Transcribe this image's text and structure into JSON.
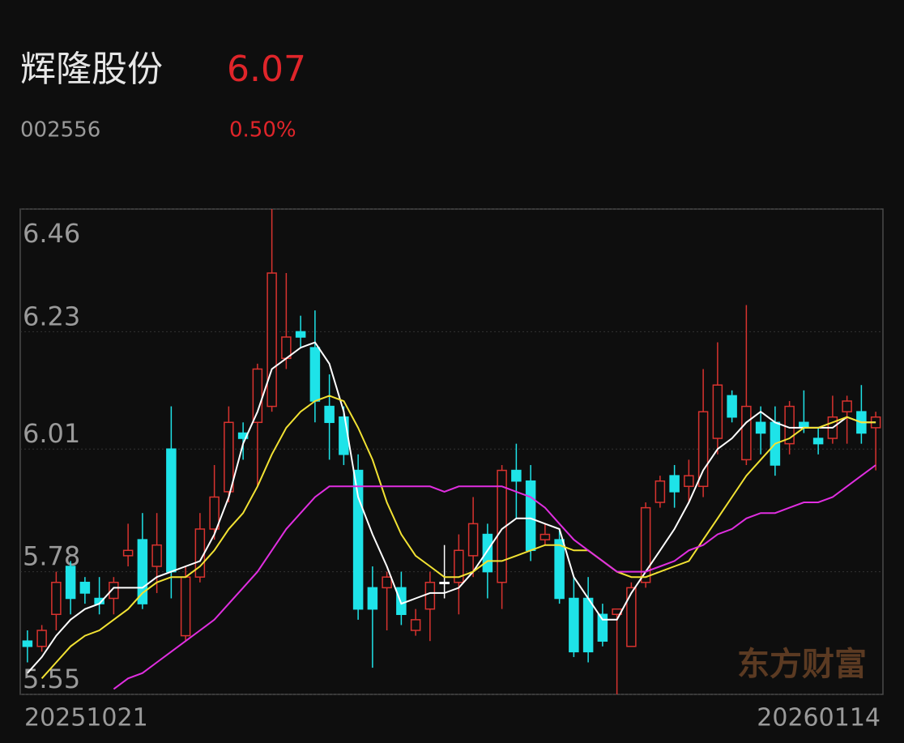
{
  "header": {
    "name": "辉隆股份",
    "price": 6.07,
    "code": "002556",
    "change": "0.50%"
  },
  "chart_data": {
    "type": "candlestick",
    "watermark": "东方财富",
    "categories": [
      "20251021",
      null,
      null,
      null,
      null,
      null,
      null,
      null,
      null,
      null,
      null,
      null,
      null,
      null,
      null,
      null,
      null,
      null,
      null,
      null,
      null,
      null,
      null,
      null,
      null,
      null,
      null,
      null,
      null,
      null,
      null,
      null,
      null,
      null,
      null,
      null,
      null,
      null,
      null,
      null,
      null,
      null,
      null,
      null,
      null,
      null,
      null,
      null,
      null,
      null,
      null,
      null,
      null,
      null,
      null,
      null,
      null,
      null,
      null,
      "20260114"
    ],
    "open": [
      5.65,
      5.64,
      5.7,
      5.79,
      5.76,
      5.73,
      5.73,
      5.81,
      5.84,
      5.79,
      6.01,
      5.66,
      5.77,
      5.86,
      5.93,
      6.04,
      6.06,
      6.09,
      6.18,
      6.23,
      6.2,
      6.09,
      6.07,
      5.97,
      5.75,
      5.75,
      5.75,
      5.67,
      5.71,
      5.76,
      5.76,
      5.81,
      5.85,
      5.76,
      5.97,
      5.95,
      5.84,
      5.84,
      5.73,
      5.73,
      5.7,
      5.7,
      5.64,
      5.76,
      5.91,
      5.96,
      5.94,
      5.94,
      6.03,
      6.11,
      5.99,
      6.06,
      6.06,
      6.02,
      6.06,
      6.03,
      6.03,
      6.08,
      6.08,
      6.05
    ],
    "high": [
      5.67,
      5.68,
      5.78,
      5.8,
      5.77,
      5.77,
      5.77,
      5.87,
      5.89,
      5.89,
      6.09,
      5.79,
      5.89,
      5.98,
      6.09,
      6.06,
      6.17,
      6.46,
      6.34,
      6.26,
      6.27,
      6.15,
      6.09,
      6.0,
      5.79,
      5.78,
      5.78,
      5.71,
      5.78,
      5.83,
      5.85,
      5.92,
      5.87,
      5.98,
      6.02,
      5.98,
      5.87,
      5.86,
      5.77,
      5.77,
      5.72,
      5.71,
      5.76,
      5.91,
      5.96,
      5.98,
      5.99,
      6.16,
      6.21,
      6.12,
      6.28,
      6.09,
      6.09,
      6.1,
      6.12,
      6.05,
      6.11,
      6.11,
      6.13,
      6.08
    ],
    "low": [
      5.61,
      5.63,
      5.67,
      5.7,
      5.72,
      5.7,
      5.7,
      5.79,
      5.71,
      5.74,
      5.73,
      5.65,
      5.76,
      5.84,
      5.91,
      5.99,
      5.94,
      6.08,
      6.16,
      6.2,
      6.06,
      5.99,
      5.98,
      5.69,
      5.6,
      5.67,
      5.68,
      5.66,
      5.65,
      5.73,
      5.7,
      5.77,
      5.73,
      5.71,
      5.88,
      5.8,
      5.83,
      5.72,
      5.62,
      5.61,
      5.64,
      5.55,
      5.64,
      5.75,
      5.9,
      5.9,
      5.91,
      5.92,
      6.0,
      6.06,
      5.98,
      6.0,
      5.96,
      6.0,
      6.04,
      6.0,
      6.02,
      6.02,
      6.02,
      5.97
    ],
    "close": [
      5.64,
      5.67,
      5.76,
      5.73,
      5.74,
      5.72,
      5.76,
      5.82,
      5.72,
      5.83,
      5.78,
      5.77,
      5.86,
      5.92,
      6.06,
      6.03,
      6.16,
      6.34,
      6.22,
      6.22,
      6.1,
      6.06,
      6.0,
      5.71,
      5.71,
      5.77,
      5.7,
      5.69,
      5.76,
      5.76,
      5.82,
      5.87,
      5.78,
      5.97,
      5.95,
      5.82,
      5.85,
      5.73,
      5.63,
      5.63,
      5.65,
      5.71,
      5.75,
      5.9,
      5.95,
      5.93,
      5.96,
      6.08,
      6.13,
      6.07,
      6.09,
      6.04,
      5.98,
      6.09,
      6.05,
      6.02,
      6.07,
      6.1,
      6.04,
      6.07
    ],
    "up_color": "#d8332f",
    "down_color": "#1ee3e8",
    "flat_color": "#ffffff",
    "moving_averages": [
      {
        "color": "#ffffff",
        "values": [
          5.59,
          5.62,
          5.66,
          5.69,
          5.71,
          5.72,
          5.75,
          5.75,
          5.75,
          5.77,
          5.78,
          5.79,
          5.8,
          5.85,
          5.92,
          6.02,
          6.08,
          6.16,
          6.18,
          6.2,
          6.21,
          6.17,
          6.08,
          5.92,
          5.85,
          5.79,
          5.72,
          5.73,
          5.74,
          5.74,
          5.75,
          5.78,
          5.82,
          5.86,
          5.88,
          5.88,
          5.87,
          5.86,
          5.77,
          5.73,
          5.69,
          5.69,
          5.74,
          5.78,
          5.82,
          5.86,
          5.91,
          5.97,
          6.01,
          6.03,
          6.06,
          6.08,
          6.06,
          6.05,
          6.05,
          6.05,
          6.05,
          6.07,
          6.06,
          6.06
        ]
      },
      {
        "color": "#f2e233",
        "values": [
          null,
          5.58,
          5.61,
          5.64,
          5.66,
          5.67,
          5.69,
          5.71,
          5.74,
          5.76,
          5.77,
          5.77,
          5.79,
          5.82,
          5.86,
          5.89,
          5.94,
          6.0,
          6.05,
          6.08,
          6.1,
          6.11,
          6.1,
          6.05,
          5.99,
          5.91,
          5.85,
          5.81,
          5.79,
          5.77,
          5.77,
          5.78,
          5.8,
          5.8,
          5.81,
          5.82,
          5.83,
          5.83,
          5.82,
          5.82,
          5.8,
          5.78,
          5.77,
          5.77,
          5.78,
          5.79,
          5.8,
          5.84,
          5.88,
          5.92,
          5.96,
          5.99,
          6.02,
          6.03,
          6.05,
          6.05,
          6.06,
          6.07,
          6.06,
          6.06
        ]
      },
      {
        "color": "#e02ee0",
        "values": [
          null,
          null,
          null,
          null,
          null,
          null,
          5.56,
          5.58,
          5.59,
          5.61,
          5.63,
          5.65,
          5.67,
          5.69,
          5.72,
          5.75,
          5.78,
          5.82,
          5.86,
          5.89,
          5.92,
          5.94,
          5.94,
          5.94,
          5.94,
          5.94,
          5.94,
          5.94,
          5.94,
          5.93,
          5.94,
          5.94,
          5.94,
          5.94,
          5.93,
          5.92,
          5.9,
          5.87,
          5.84,
          5.82,
          5.8,
          5.78,
          5.78,
          5.78,
          5.79,
          5.8,
          5.82,
          5.83,
          5.85,
          5.86,
          5.88,
          5.89,
          5.89,
          5.9,
          5.91,
          5.91,
          5.92,
          5.94,
          5.96,
          5.98
        ]
      }
    ],
    "ylim": [
      5.55,
      6.46
    ],
    "yticks": [
      6.46,
      6.23,
      6.01,
      5.78,
      5.55
    ],
    "grid": true
  }
}
